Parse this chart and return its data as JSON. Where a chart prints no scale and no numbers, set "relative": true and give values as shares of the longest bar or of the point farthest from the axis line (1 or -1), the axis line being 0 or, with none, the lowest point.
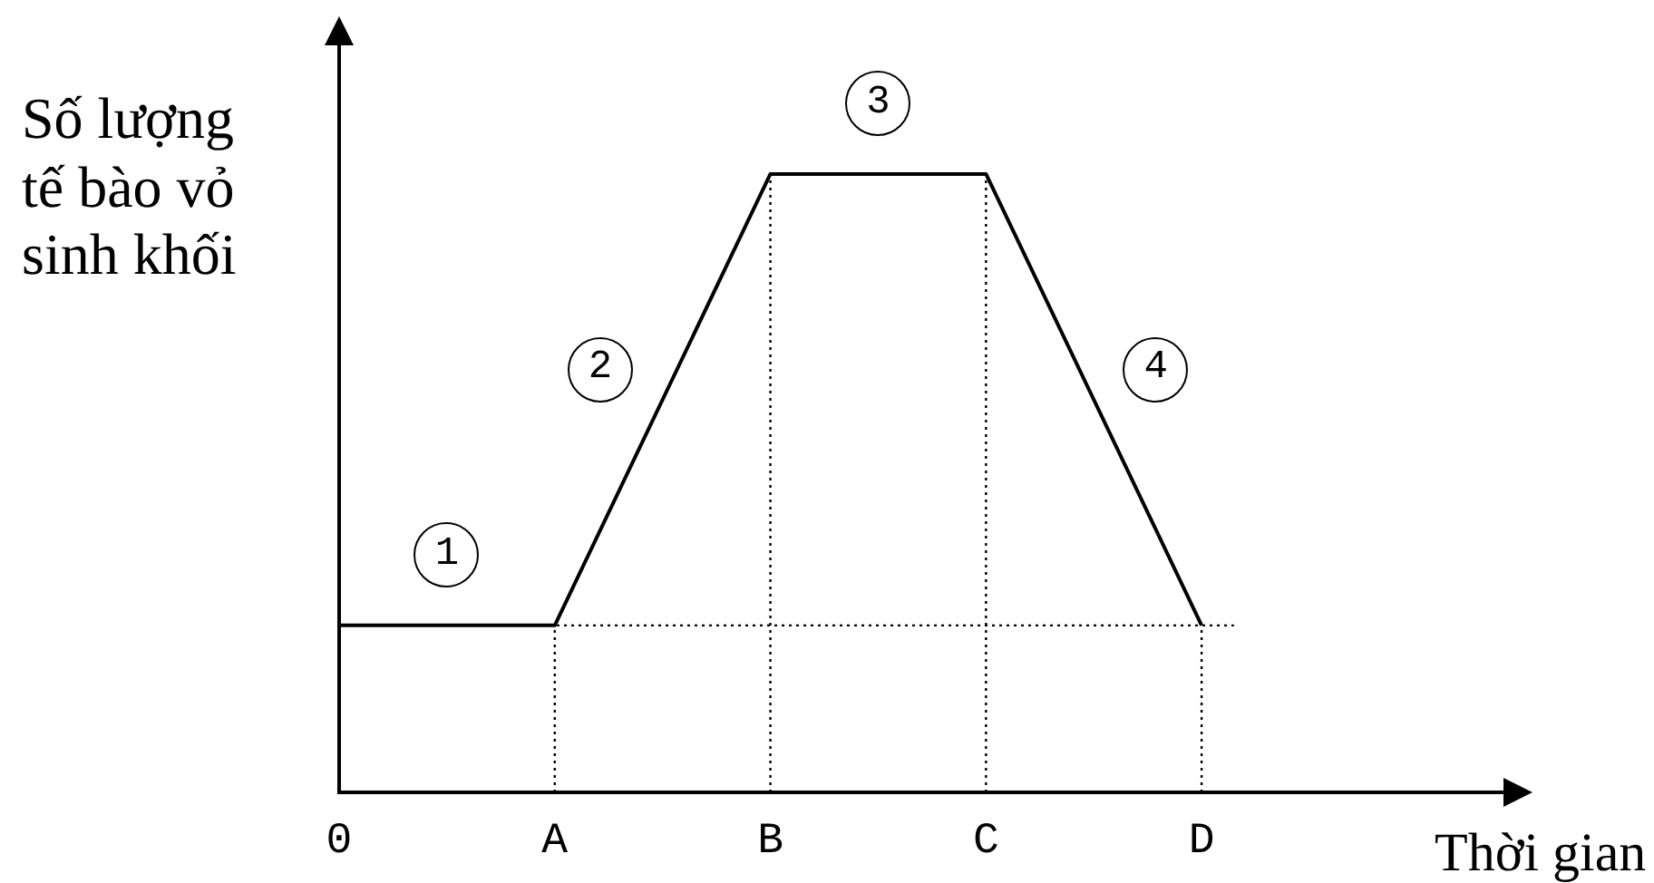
{
  "chart_data": {
    "type": "line",
    "categories": [
      "0",
      "A",
      "B",
      "C",
      "D"
    ],
    "values": [
      0.27,
      0.27,
      1,
      1,
      0.27
    ],
    "color": "#000000",
    "relative": true,
    "ylabel": "Số lượng tế bào vỏ sinh khối",
    "xlabel": "Thời gian",
    "annotations": [
      "1",
      "2",
      "3",
      "4"
    ],
    "ref_lines": [
      {
        "axis": "x",
        "value": "A",
        "line_style": "dotted"
      },
      {
        "axis": "x",
        "value": "B",
        "line_style": "dotted"
      },
      {
        "axis": "x",
        "value": "C",
        "line_style": "dotted"
      },
      {
        "axis": "x",
        "value": "D",
        "line_style": "dotted"
      },
      {
        "axis": "y",
        "value": 0.27,
        "line_style": "dotted"
      }
    ]
  }
}
